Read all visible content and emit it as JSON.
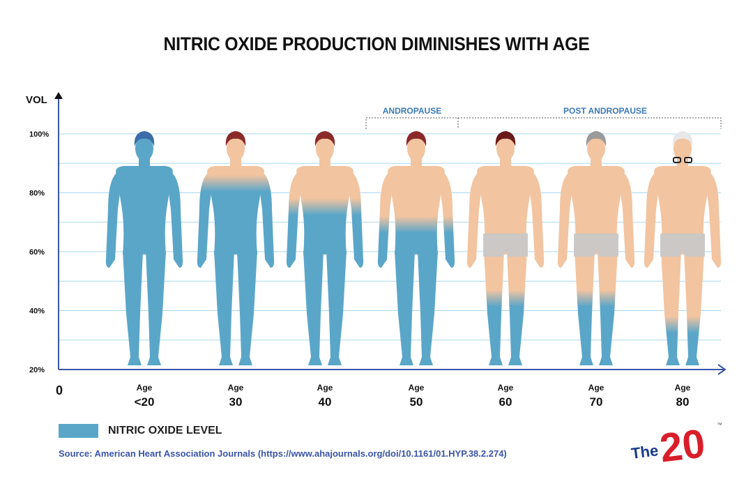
{
  "title": "NITRIC OXIDE PRODUCTION DIMINISHES WITH AGE",
  "chart_data": {
    "type": "bar",
    "ylabel": "VOL",
    "ylim": [
      20,
      100
    ],
    "y_ticks": [
      "100%",
      "80%",
      "60%",
      "40%",
      "20%"
    ],
    "origin_label": "0",
    "age_word": "Age",
    "categories": [
      "<20",
      "30",
      "40",
      "50",
      "60",
      "70",
      "80"
    ],
    "values": [
      100,
      82,
      74,
      68,
      43,
      43,
      34
    ],
    "bracket_labels": [
      "ANDROPAUSE",
      "POST ANDROPAUSE"
    ],
    "hair_colors": [
      "#3d6da8",
      "#8a2a2a",
      "#8a2a2a",
      "#8a2a2a",
      "#6b1a1a",
      "#9a9a9a",
      "#e8e8e8"
    ]
  },
  "legend": {
    "label": "NITRIC OXIDE LEVEL",
    "color": "#5aa6c9"
  },
  "source": "Source: American Heart Association Journals (https://www.ahajournals.org/doi/10.1161/01.HYP.38.2.274)",
  "logo": {
    "the": "The",
    "number": "20",
    "tm": "™"
  },
  "colors": {
    "level": "#5aa6c9",
    "skin": "#f2c4a0",
    "axis": "#3a54a6",
    "grid": "#a9d8ee",
    "underwear": "#c8c8c8"
  }
}
